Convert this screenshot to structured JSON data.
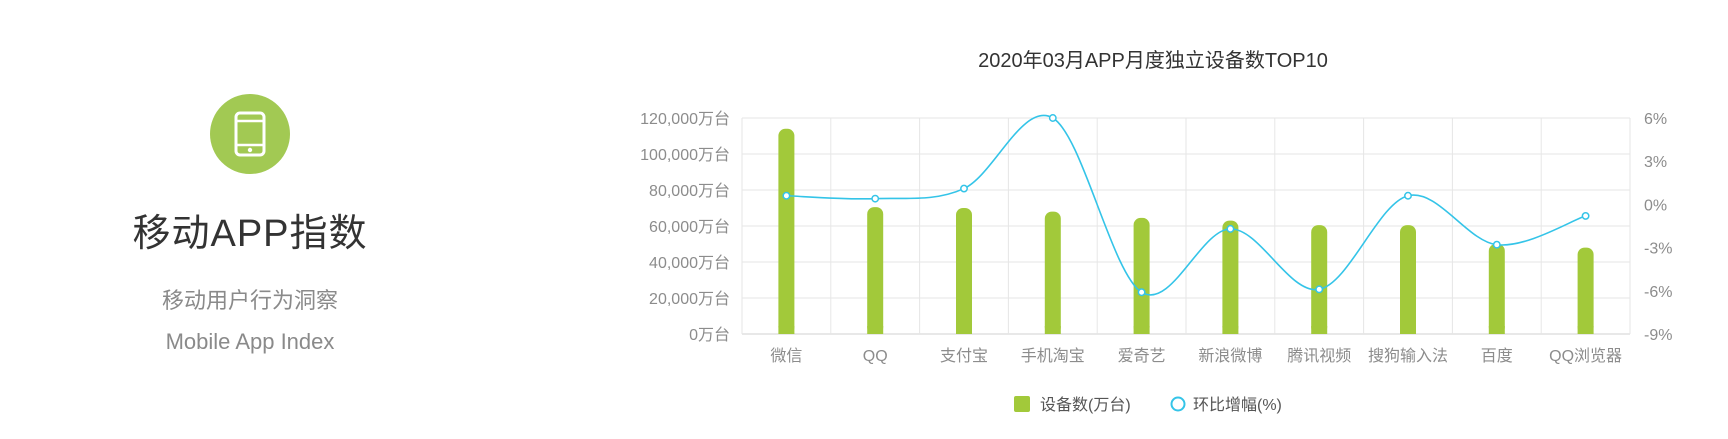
{
  "brand": {
    "title": "移动APP指数",
    "subtitle_cn": "移动用户行为洞察",
    "subtitle_en": "Mobile App Index",
    "icon": "smartphone-icon",
    "accent_color": "#a2c953"
  },
  "chart_data": {
    "type": "bar",
    "title": "2020年03月APP月度独立设备数TOP10",
    "categories": [
      "微信",
      "QQ",
      "支付宝",
      "手机淘宝",
      "爱奇艺",
      "新浪微博",
      "腾讯视频",
      "搜狗输入法",
      "百度",
      "QQ浏览器"
    ],
    "series": [
      {
        "name": "设备数(万台)",
        "type": "bar",
        "axis": "left",
        "color": "#a2c93a",
        "values": [
          114000,
          70500,
          70000,
          68000,
          64500,
          63000,
          60500,
          60500,
          50000,
          48000
        ]
      },
      {
        "name": "环比增幅(%)",
        "type": "line",
        "axis": "right",
        "color": "#34c4e8",
        "values": [
          0.6,
          0.4,
          1.1,
          6.0,
          -6.1,
          -1.7,
          -5.9,
          0.6,
          -2.8,
          -0.8
        ]
      }
    ],
    "left_axis": {
      "ylim": [
        0,
        120000
      ],
      "ticks": [
        "0万台",
        "20,000万台",
        "40,000万台",
        "60,000万台",
        "80,000万台",
        "100,000万台",
        "120,000万台"
      ]
    },
    "right_axis": {
      "ylim": [
        -9,
        6
      ],
      "ticks": [
        "-9%",
        "-6%",
        "-3%",
        "0%",
        "3%",
        "6%"
      ]
    },
    "grid": true,
    "legend_position": "bottom-center"
  }
}
